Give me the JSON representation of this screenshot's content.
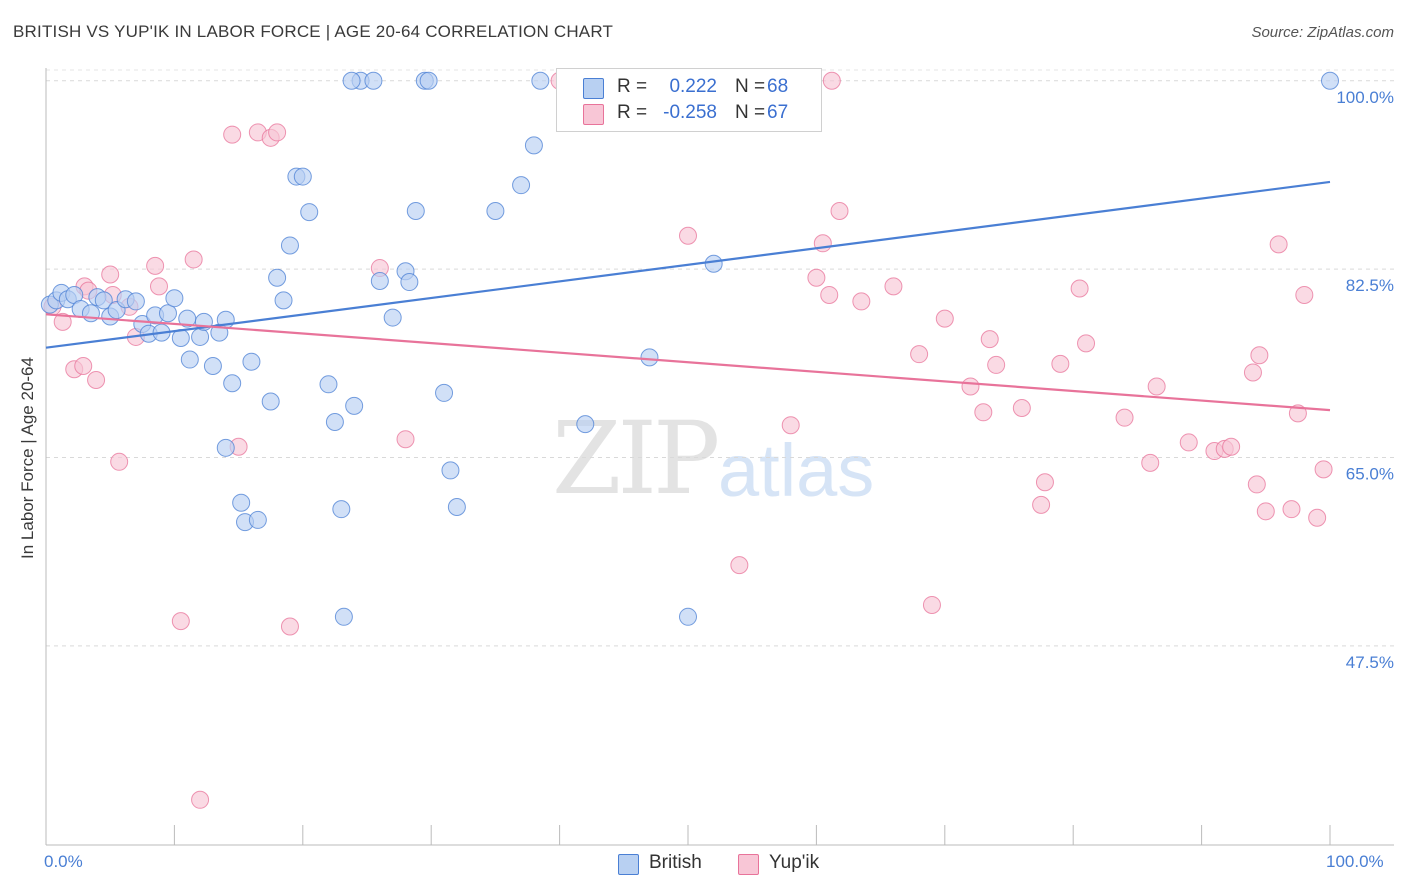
{
  "header": {
    "title": "BRITISH VS YUP'IK IN LABOR FORCE | AGE 20-64 CORRELATION CHART",
    "source": "Source: ZipAtlas.com"
  },
  "watermark": {
    "zip": "ZIP",
    "atlas": "atlas"
  },
  "legend_stats": [
    {
      "r_label": "R =",
      "r_value": "0.222",
      "n_label": "N =",
      "n_value": "68"
    },
    {
      "r_label": "R =",
      "r_value": "-0.258",
      "n_label": "N =",
      "n_value": "67"
    }
  ],
  "chart_data": {
    "type": "scatter",
    "title": "BRITISH VS YUP'IK IN LABOR FORCE | AGE 20-64 CORRELATION CHART",
    "xlabel": "",
    "ylabel": "In Labor Force | Age 20-64",
    "xlim": [
      0,
      100
    ],
    "ylim": [
      29,
      101
    ],
    "x_tick_labels": [
      "0.0%",
      "100.0%"
    ],
    "y_ticks": [
      {
        "value": 100.0,
        "label": "100.0%"
      },
      {
        "value": 82.5,
        "label": "82.5%"
      },
      {
        "value": 65.0,
        "label": "65.0%"
      },
      {
        "value": 47.5,
        "label": "47.5%"
      }
    ],
    "grid": "horizontal-dashed",
    "legend": "bottom-center",
    "colors": {
      "british": "#4a7fd4",
      "british_fill": "#b8d0f2",
      "yupik": "#e8739a",
      "yupik_fill": "#f8c6d6",
      "axis_text": "#4a7fd4"
    },
    "series": [
      {
        "name": "British",
        "trend": {
          "x": [
            0,
            100
          ],
          "y": [
            75.2,
            90.6
          ]
        },
        "points": [
          [
            0.3,
            79.2
          ],
          [
            0.8,
            79.6
          ],
          [
            1.2,
            80.3
          ],
          [
            1.7,
            79.7
          ],
          [
            2.2,
            80.1
          ],
          [
            2.7,
            78.8
          ],
          [
            3.5,
            78.4
          ],
          [
            4.0,
            79.9
          ],
          [
            4.5,
            79.6
          ],
          [
            5.0,
            78.1
          ],
          [
            5.5,
            78.7
          ],
          [
            6.2,
            79.7
          ],
          [
            7.0,
            79.5
          ],
          [
            7.5,
            77.4
          ],
          [
            8.0,
            76.5
          ],
          [
            8.5,
            78.2
          ],
          [
            9.0,
            76.6
          ],
          [
            9.5,
            78.4
          ],
          [
            10.0,
            79.8
          ],
          [
            10.5,
            76.1
          ],
          [
            11.0,
            77.9
          ],
          [
            11.2,
            74.1
          ],
          [
            12.0,
            76.2
          ],
          [
            12.3,
            77.6
          ],
          [
            13.0,
            73.5
          ],
          [
            13.5,
            76.6
          ],
          [
            14.0,
            77.8
          ],
          [
            14.5,
            71.9
          ],
          [
            16.0,
            73.9
          ],
          [
            17.5,
            70.2
          ],
          [
            18.0,
            81.7
          ],
          [
            18.5,
            79.6
          ],
          [
            19.0,
            84.7
          ],
          [
            19.5,
            91.1
          ],
          [
            20.5,
            87.8
          ],
          [
            22.0,
            71.8
          ],
          [
            22.5,
            68.3
          ],
          [
            23.0,
            60.2
          ],
          [
            23.2,
            50.2
          ],
          [
            24.0,
            69.8
          ],
          [
            24.5,
            100.0
          ],
          [
            25.5,
            100.0
          ],
          [
            26.0,
            81.4
          ],
          [
            27.0,
            78.0
          ],
          [
            28.0,
            82.3
          ],
          [
            28.3,
            81.3
          ],
          [
            28.8,
            87.9
          ],
          [
            29.5,
            100.0
          ],
          [
            29.8,
            100.0
          ],
          [
            31.0,
            71.0
          ],
          [
            31.5,
            63.8
          ],
          [
            32.0,
            60.4
          ],
          [
            35.0,
            87.9
          ],
          [
            37.0,
            90.3
          ],
          [
            38.0,
            94.0
          ],
          [
            38.5,
            100.0
          ],
          [
            42.0,
            68.1
          ],
          [
            47.0,
            74.3
          ],
          [
            50.0,
            50.2
          ],
          [
            52.0,
            83.0
          ],
          [
            100.0,
            100.0
          ],
          [
            14.0,
            65.9
          ],
          [
            15.5,
            59.0
          ],
          [
            16.5,
            59.2
          ],
          [
            15.2,
            60.8
          ],
          [
            20.0,
            91.1
          ],
          [
            23.8,
            100.0
          ],
          [
            44.0,
            100.0
          ]
        ]
      },
      {
        "name": "Yup'ik",
        "trend": {
          "x": [
            0,
            100
          ],
          "y": [
            78.3,
            69.4
          ]
        },
        "points": [
          [
            0.5,
            79.0
          ],
          [
            1.3,
            77.6
          ],
          [
            2.2,
            73.2
          ],
          [
            2.9,
            73.5
          ],
          [
            3.0,
            80.9
          ],
          [
            3.9,
            72.2
          ],
          [
            5.0,
            82.0
          ],
          [
            5.2,
            80.1
          ],
          [
            5.7,
            64.6
          ],
          [
            6.5,
            79.0
          ],
          [
            7.0,
            76.2
          ],
          [
            8.5,
            82.8
          ],
          [
            8.8,
            80.9
          ],
          [
            10.5,
            49.8
          ],
          [
            11.5,
            83.4
          ],
          [
            12.0,
            33.2
          ],
          [
            14.5,
            95.0
          ],
          [
            15.0,
            66.0
          ],
          [
            16.5,
            95.2
          ],
          [
            17.5,
            94.7
          ],
          [
            18.0,
            95.2
          ],
          [
            19.0,
            49.3
          ],
          [
            26.0,
            82.6
          ],
          [
            28.0,
            66.7
          ],
          [
            40.0,
            100.0
          ],
          [
            47.5,
            100.0
          ],
          [
            50.0,
            85.6
          ],
          [
            54.0,
            55.0
          ],
          [
            58.0,
            68.0
          ],
          [
            60.0,
            81.7
          ],
          [
            60.5,
            84.9
          ],
          [
            61.0,
            80.1
          ],
          [
            61.8,
            87.9
          ],
          [
            63.5,
            79.5
          ],
          [
            66.0,
            80.9
          ],
          [
            68.0,
            74.6
          ],
          [
            69.0,
            51.3
          ],
          [
            70.0,
            77.9
          ],
          [
            72.0,
            71.6
          ],
          [
            73.0,
            69.2
          ],
          [
            73.5,
            76.0
          ],
          [
            74.0,
            73.6
          ],
          [
            76.0,
            69.6
          ],
          [
            77.5,
            60.6
          ],
          [
            77.8,
            62.7
          ],
          [
            79.0,
            73.7
          ],
          [
            80.5,
            80.7
          ],
          [
            81.0,
            75.6
          ],
          [
            84.0,
            68.7
          ],
          [
            86.0,
            64.5
          ],
          [
            86.5,
            71.6
          ],
          [
            89.0,
            66.4
          ],
          [
            91.0,
            65.6
          ],
          [
            91.8,
            65.8
          ],
          [
            92.3,
            66.0
          ],
          [
            94.0,
            72.9
          ],
          [
            94.3,
            62.5
          ],
          [
            94.5,
            74.5
          ],
          [
            95.0,
            60.0
          ],
          [
            96.0,
            84.8
          ],
          [
            97.0,
            60.2
          ],
          [
            97.5,
            69.1
          ],
          [
            98.0,
            80.1
          ],
          [
            99.0,
            59.4
          ],
          [
            99.5,
            63.9
          ],
          [
            61.2,
            100.0
          ],
          [
            3.3,
            80.5
          ]
        ]
      }
    ]
  }
}
